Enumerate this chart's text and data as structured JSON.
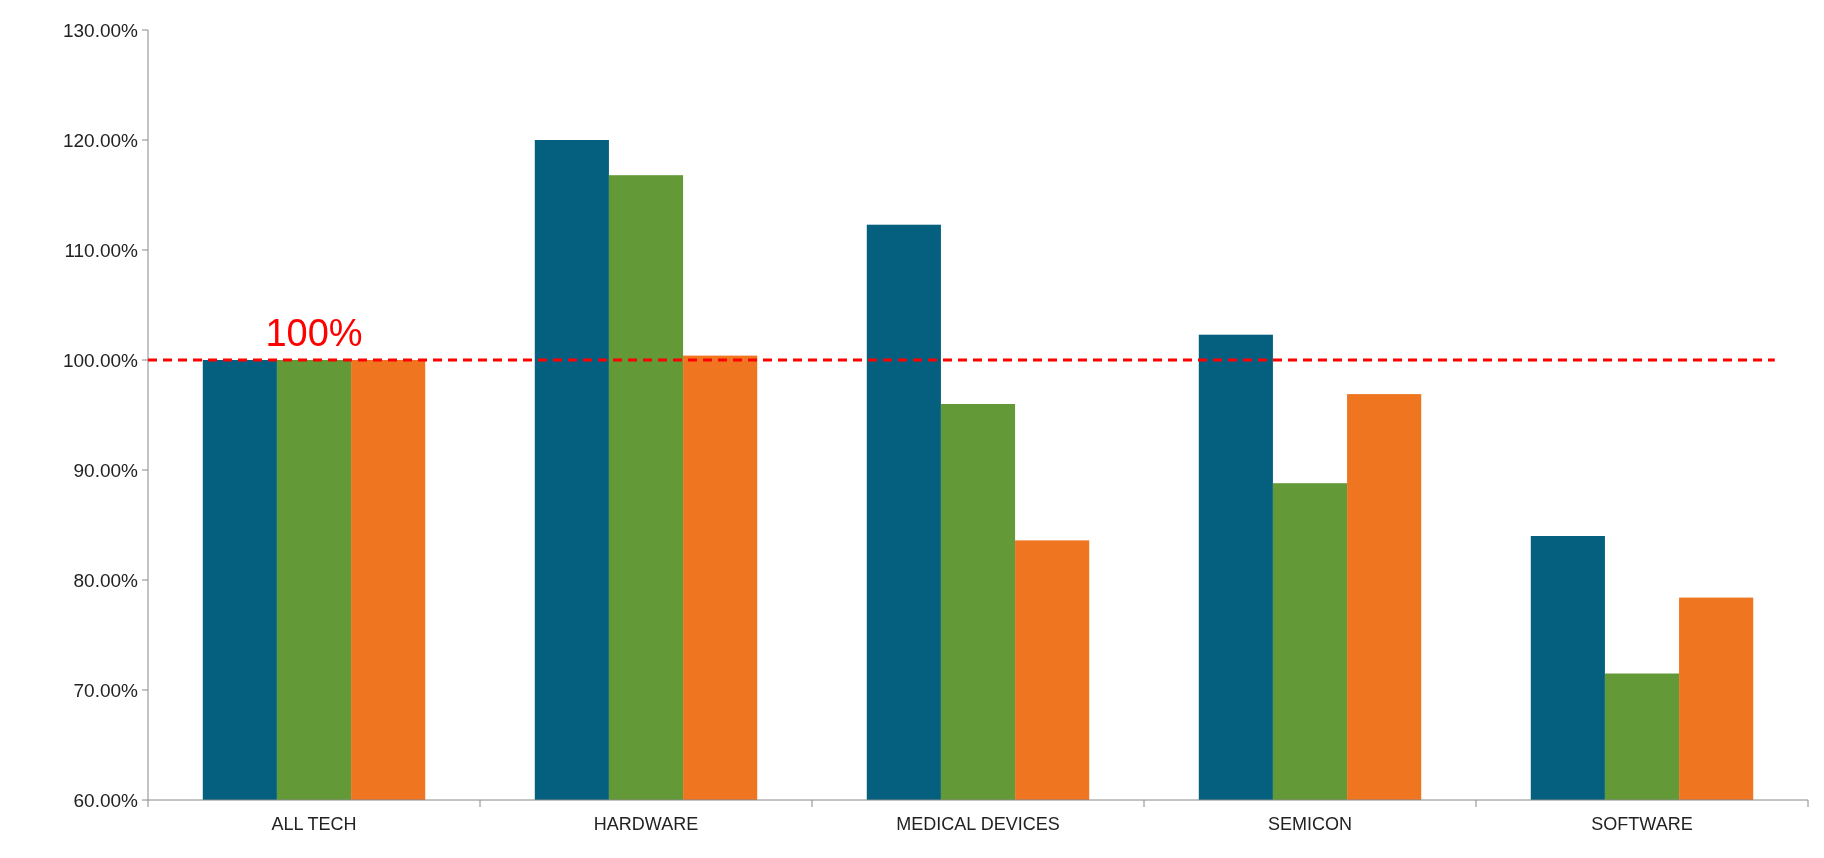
{
  "chart_data": {
    "type": "bar",
    "categories": [
      "ALL TECH",
      "HARDWARE",
      "MEDICAL DEVICES",
      "SEMICON",
      "SOFTWARE"
    ],
    "series": [
      {
        "color": "#04607e",
        "values": [
          100,
          120,
          112.3,
          102.3,
          84
        ]
      },
      {
        "color": "#639a37",
        "values": [
          100,
          116.8,
          96,
          88.8,
          71.5
        ]
      },
      {
        "color": "#ef7521",
        "values": [
          100,
          100.4,
          83.6,
          96.9,
          78.4
        ]
      }
    ],
    "ylim": [
      60,
      130
    ],
    "yticks": [
      {
        "value": 60,
        "label": "60.00%"
      },
      {
        "value": 70,
        "label": "70.00%"
      },
      {
        "value": 80,
        "label": "80.00%"
      },
      {
        "value": 90,
        "label": "90.00%"
      },
      {
        "value": 100,
        "label": "100.00%"
      },
      {
        "value": 110,
        "label": "110.00%"
      },
      {
        "value": 120,
        "label": "120.00%"
      },
      {
        "value": 130,
        "label": "130.00%"
      }
    ],
    "ref_lines": [
      {
        "axis": "y",
        "value": 100,
        "label": "100%",
        "color": "#ff0000",
        "line_style": "dashed"
      }
    ],
    "grid": false
  }
}
